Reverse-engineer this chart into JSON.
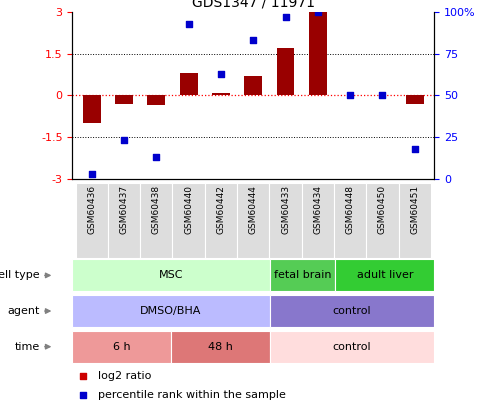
{
  "title": "GDS1347 / 11971",
  "samples": [
    "GSM60436",
    "GSM60437",
    "GSM60438",
    "GSM60440",
    "GSM60442",
    "GSM60444",
    "GSM60433",
    "GSM60434",
    "GSM60448",
    "GSM60450",
    "GSM60451"
  ],
  "log2_ratio": [
    -1.0,
    -0.3,
    -0.35,
    0.8,
    0.1,
    0.7,
    1.7,
    3.0,
    0.0,
    0.0,
    -0.3
  ],
  "percentile_rank": [
    3,
    23,
    13,
    93,
    63,
    83,
    97,
    100,
    50,
    50,
    18
  ],
  "bar_color": "#990000",
  "dot_color": "#0000cc",
  "ylim_left": [
    -3,
    3
  ],
  "ylim_right": [
    0,
    100
  ],
  "yticks_left": [
    -3,
    -1.5,
    0,
    1.5,
    3
  ],
  "yticks_right": [
    0,
    25,
    50,
    75,
    100
  ],
  "yticklabels_right": [
    "0",
    "25",
    "50",
    "75",
    "100%"
  ],
  "yticklabels_left": [
    "-3",
    "-1.5",
    "0",
    "1.5",
    "3"
  ],
  "cell_type_groups": [
    {
      "label": "MSC",
      "start": 0,
      "end": 5,
      "color": "#ccffcc"
    },
    {
      "label": "fetal brain",
      "start": 6,
      "end": 7,
      "color": "#55cc55"
    },
    {
      "label": "adult liver",
      "start": 8,
      "end": 10,
      "color": "#33cc33"
    }
  ],
  "agent_groups": [
    {
      "label": "DMSO/BHA",
      "start": 0,
      "end": 5,
      "color": "#bbbbff"
    },
    {
      "label": "control",
      "start": 6,
      "end": 10,
      "color": "#8877cc"
    }
  ],
  "time_groups": [
    {
      "label": "6 h",
      "start": 0,
      "end": 2,
      "color": "#ee9999"
    },
    {
      "label": "48 h",
      "start": 3,
      "end": 5,
      "color": "#dd7777"
    },
    {
      "label": "control",
      "start": 6,
      "end": 10,
      "color": "#ffdddd"
    }
  ],
  "row_labels": [
    "cell type",
    "agent",
    "time"
  ],
  "legend_bar_label": "log2 ratio",
  "legend_dot_label": "percentile rank within the sample",
  "bar_color_legend": "#cc0000",
  "dot_color_legend": "#0000cc",
  "gsm_bg_color": "#dddddd",
  "border_color": "#000000"
}
